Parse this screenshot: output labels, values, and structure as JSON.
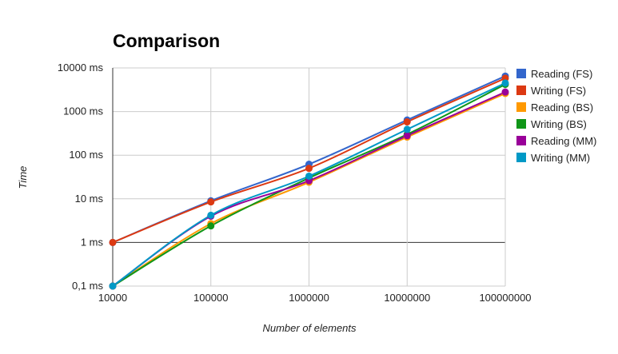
{
  "chart_data": {
    "type": "line",
    "title": "Comparison",
    "xlabel": "Number of elements",
    "ylabel": "Time",
    "x_scale": "log",
    "y_scale": "log",
    "x": [
      10000,
      100000,
      1000000,
      10000000,
      100000000
    ],
    "x_tick_labels": [
      "10000",
      "100000",
      "1000000",
      "10000000",
      "100000000"
    ],
    "y_ticks": [
      0.1,
      1,
      10,
      100,
      1000,
      10000
    ],
    "y_tick_labels": [
      "0,1 ms",
      "1 ms",
      "10 ms",
      "100 ms",
      "1000 ms",
      "10000 ms"
    ],
    "ylim": [
      0.1,
      10000
    ],
    "grid": true,
    "legend_position": "right",
    "series": [
      {
        "name": "Reading (FS)",
        "color": "#3366cc",
        "values": [
          1,
          9,
          62,
          640,
          6500
        ]
      },
      {
        "name": "Writing (FS)",
        "color": "#dc3912",
        "values": [
          1,
          8.5,
          50,
          580,
          5800
        ]
      },
      {
        "name": "Reading (BS)",
        "color": "#ff9900",
        "values": [
          0.1,
          2.7,
          24,
          260,
          2600
        ]
      },
      {
        "name": "Writing (BS)",
        "color": "#109618",
        "values": [
          0.1,
          2.4,
          30,
          300,
          4200
        ]
      },
      {
        "name": "Reading (MM)",
        "color": "#990099",
        "values": [
          0.1,
          4,
          26,
          280,
          2800
        ]
      },
      {
        "name": "Writing (MM)",
        "color": "#0099c6",
        "values": [
          0.1,
          4.2,
          33,
          390,
          4500
        ]
      }
    ]
  }
}
